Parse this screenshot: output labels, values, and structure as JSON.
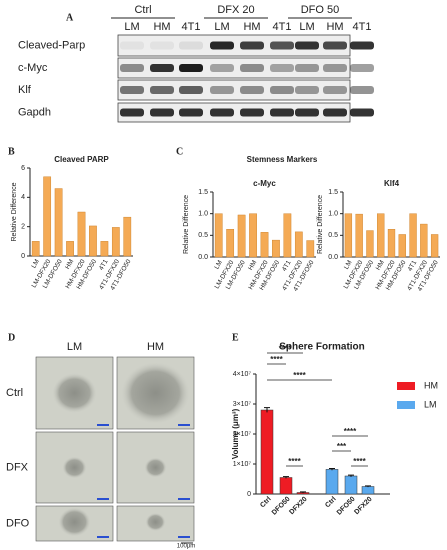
{
  "labels": {
    "a": "A",
    "b": "B",
    "c": "C",
    "d": "D",
    "e": "E"
  },
  "blot": {
    "groups": [
      "Ctrl",
      "DFX 20",
      "DFO 50"
    ],
    "lanes": [
      "LM",
      "HM",
      "4T1",
      "LM",
      "HM",
      "4T1",
      "LM",
      "HM",
      "4T1"
    ],
    "rows": [
      "Cleaved-Parp",
      "c-Myc",
      "Klf",
      "Gapdh"
    ]
  },
  "stemness_title": "Stemness Markers",
  "micrographs": {
    "columns": [
      "LM",
      "HM"
    ],
    "rows": [
      "Ctrl",
      "DFX",
      "DFO"
    ],
    "scale_bar": "100μm"
  },
  "chart_data": [
    {
      "type": "bar",
      "title": "Cleaved PARP",
      "y_label": "Relative Difference",
      "color": "#f4aa55",
      "categories": [
        "LM",
        "LM-DFX20",
        "LM-DFO50",
        "HM",
        "HM-DFX20",
        "HM-DFO50",
        "4T1",
        "4T1-DFX20",
        "4T1-DFO50"
      ],
      "values": [
        1,
        5.4,
        4.6,
        1,
        3.0,
        2.05,
        1,
        1.95,
        2.65
      ],
      "ylim": [
        0,
        6
      ],
      "yticks": [
        0,
        2,
        4,
        6
      ]
    },
    {
      "type": "bar",
      "title": "c-Myc",
      "y_label": "Relative Difference",
      "color": "#f4aa55",
      "categories": [
        "LM",
        "LM-DFX20",
        "LM-DFO50",
        "HM",
        "HM-DFX20",
        "HM-DFO50",
        "4T1",
        "4T1-DFX20",
        "4T1-DFO50"
      ],
      "values": [
        1.0,
        0.64,
        0.97,
        1.0,
        0.57,
        0.39,
        1.0,
        0.58,
        0.38
      ],
      "ylim": [
        0,
        1.5
      ],
      "yticks": [
        {
          "value": 0,
          "label": "0.0"
        },
        0.5,
        {
          "value": 1,
          "label": "1.0"
        },
        1.5
      ]
    },
    {
      "type": "bar",
      "title": "Klf4",
      "y_label": "Relative Difference",
      "color": "#f4aa55",
      "categories": [
        "LM",
        "LM-DFX20",
        "LM-DFO50",
        "HM",
        "HM-DFX20",
        "HM-DFO50",
        "4T1",
        "4T1-DFX20",
        "4T1-DFO50"
      ],
      "values": [
        1.0,
        0.99,
        0.61,
        1.0,
        0.64,
        0.52,
        1.0,
        0.76,
        0.52
      ],
      "ylim": [
        0,
        1.5
      ],
      "yticks": [
        {
          "value": 0,
          "label": "0.0"
        },
        0.5,
        {
          "value": 1,
          "label": "1.0"
        },
        1.5
      ]
    },
    {
      "type": "errorbar",
      "title": "Sphere Formation",
      "y_label": "Volume (μm³)",
      "categories": [
        "Ctrl",
        "DFO50",
        "DFX20",
        "Ctrl",
        "DFO50",
        "DFX20"
      ],
      "series": [
        {
          "name": "HM",
          "color": "#ee1c24",
          "values": [
            28000000,
            5500000,
            500000,
            null,
            null,
            null
          ],
          "errors": [
            800000,
            300000,
            200000,
            null,
            null,
            null
          ]
        },
        {
          "name": "LM",
          "color": "#5aa9ee",
          "values": [
            null,
            null,
            null,
            8200000,
            6000000,
            2500000
          ],
          "errors": [
            null,
            null,
            null,
            300000,
            300000,
            200000
          ]
        }
      ],
      "ylim": [
        0,
        40000000
      ],
      "yticks": [
        0,
        {
          "value": 10000000,
          "label": "1×10⁷"
        },
        {
          "value": 20000000,
          "label": "2×10⁷"
        },
        {
          "value": 30000000,
          "label": "3×10⁷"
        },
        {
          "value": 40000000,
          "label": "4×10⁷"
        }
      ],
      "annotations": [
        "****",
        "****",
        "****",
        "****",
        "****",
        "***",
        "****"
      ]
    }
  ]
}
